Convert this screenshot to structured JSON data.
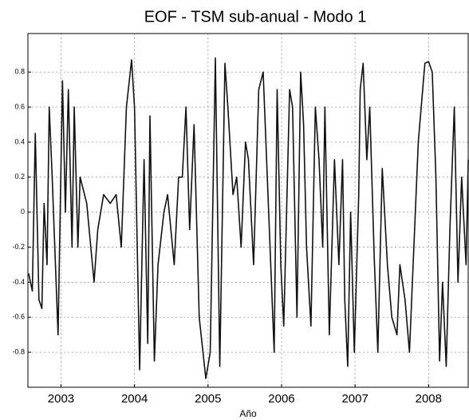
{
  "chart_data": {
    "type": "line",
    "title": "EOF - TSM sub-anual - Modo 1",
    "x_label": "Año",
    "x": [
      2002.56,
      2002.61,
      2002.65,
      2002.7,
      2002.74,
      2002.77,
      2002.81,
      2002.84,
      2002.88,
      2002.96,
      2003.02,
      2003.06,
      2003.1,
      2003.15,
      2003.18,
      2003.23,
      2003.26,
      2003.35,
      2003.45,
      2003.5,
      2003.58,
      2003.67,
      2003.75,
      2003.82,
      2003.89,
      2003.96,
      2004.0,
      2004.07,
      2004.13,
      2004.18,
      2004.21,
      2004.27,
      2004.32,
      2004.4,
      2004.45,
      2004.54,
      2004.6,
      2004.65,
      2004.7,
      2004.75,
      2004.81,
      2004.88,
      2004.97,
      2005.03,
      2005.1,
      2005.16,
      2005.23,
      2005.27,
      2005.34,
      2005.39,
      2005.45,
      2005.51,
      2005.55,
      2005.62,
      2005.69,
      2005.75,
      2005.9,
      2005.94,
      2005.99,
      2006.03,
      2006.11,
      2006.15,
      2006.21,
      2006.26,
      2006.3,
      2006.34,
      2006.4,
      2006.46,
      2006.51,
      2006.56,
      2006.59,
      2006.65,
      2006.72,
      2006.78,
      2006.83,
      2006.86,
      2006.9,
      2006.94,
      2006.99,
      2007.05,
      2007.07,
      2007.11,
      2007.16,
      2007.2,
      2007.26,
      2007.31,
      2007.37,
      2007.44,
      2007.5,
      2007.57,
      2007.61,
      2007.68,
      2007.74,
      2007.81,
      2007.86,
      2007.95,
      2008.0,
      2008.05,
      2008.1,
      2008.15,
      2008.19,
      2008.24,
      2008.29,
      2008.35,
      2008.4,
      2008.45,
      2008.51,
      2008.54
    ],
    "series": [
      {
        "color": "#111111",
        "values": [
          -0.35,
          -0.45,
          0.45,
          -0.5,
          -0.55,
          0.05,
          -0.3,
          0.6,
          0.2,
          -0.7,
          0.75,
          0.0,
          0.7,
          -0.2,
          0.6,
          -0.2,
          0.2,
          0.05,
          -0.4,
          -0.1,
          0.1,
          0.05,
          0.1,
          -0.2,
          0.6,
          0.87,
          0.6,
          -0.9,
          0.3,
          -0.75,
          0.55,
          -0.85,
          -0.3,
          0.0,
          0.1,
          -0.3,
          0.2,
          0.2,
          0.6,
          -0.1,
          0.5,
          -0.6,
          -0.95,
          -0.8,
          0.88,
          -0.88,
          0.85,
          0.6,
          0.1,
          0.2,
          -0.2,
          0.4,
          0.3,
          -0.3,
          0.7,
          0.8,
          -0.8,
          0.7,
          -0.3,
          -0.65,
          0.7,
          0.6,
          -0.6,
          0.8,
          0.5,
          -0.2,
          -0.65,
          0.6,
          0.3,
          -0.2,
          0.6,
          -0.7,
          0.3,
          -0.3,
          0.3,
          -0.5,
          -0.88,
          0.0,
          -0.8,
          0.1,
          0.7,
          0.85,
          0.3,
          0.6,
          -0.25,
          -0.8,
          0.25,
          -0.3,
          -0.6,
          -0.7,
          -0.3,
          -0.5,
          -0.8,
          -0.1,
          0.4,
          0.85,
          0.86,
          0.8,
          0.2,
          -0.85,
          -0.4,
          -0.88,
          -0.1,
          0.6,
          -0.4,
          0.2,
          -0.3,
          0.3
        ]
      }
    ],
    "xlim": [
      2002.55,
      2008.55
    ],
    "xticks": [
      2003,
      2004,
      2005,
      2006,
      2007,
      2008
    ],
    "ylim": [
      -1.0,
      1.02
    ],
    "yticks": [
      -0.8,
      -0.6,
      -0.4,
      -0.2,
      0,
      0.2,
      0.4,
      0.6,
      0.8
    ],
    "grid": true
  }
}
